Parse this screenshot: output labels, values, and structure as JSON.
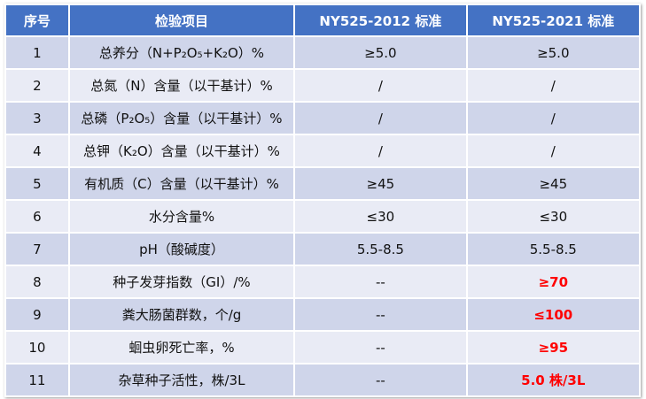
{
  "table": {
    "header": [
      "序号",
      "检验项目",
      "NY525-2012 标准",
      "NY525-2021 标准"
    ],
    "rows": [
      [
        "1",
        "总养分（N+P₂O₅+K₂O）%",
        "≥5.0",
        "≥5.0"
      ],
      [
        "2",
        "总氮（N）含量（以干基计）%",
        "/",
        "/"
      ],
      [
        "3",
        "总磷（P₂O₅）含量（以干基计）%",
        "/",
        "/"
      ],
      [
        "4",
        "总钾（K₂O）含量（以干基计）%",
        "/",
        "/"
      ],
      [
        "5",
        "有机质（C）含量（以干基计）%",
        "≥45",
        "≥45"
      ],
      [
        "6",
        "水分含量%",
        "≤30",
        "≤30"
      ],
      [
        "7",
        "pH（酸碱度）",
        "5.5-8.5",
        "5.5-8.5"
      ],
      [
        "8",
        "种子发芽指数（GI）/%",
        "--",
        "≥70"
      ],
      [
        "9",
        "粪大肠菌群数，个/g",
        "--",
        "≤100"
      ],
      [
        "10",
        "蛔虫卵死亡率，%",
        "--",
        "≥95"
      ],
      [
        "11",
        "杂草种子活性，株/3L",
        "--",
        "5.0 株/3L"
      ]
    ]
  }
}
